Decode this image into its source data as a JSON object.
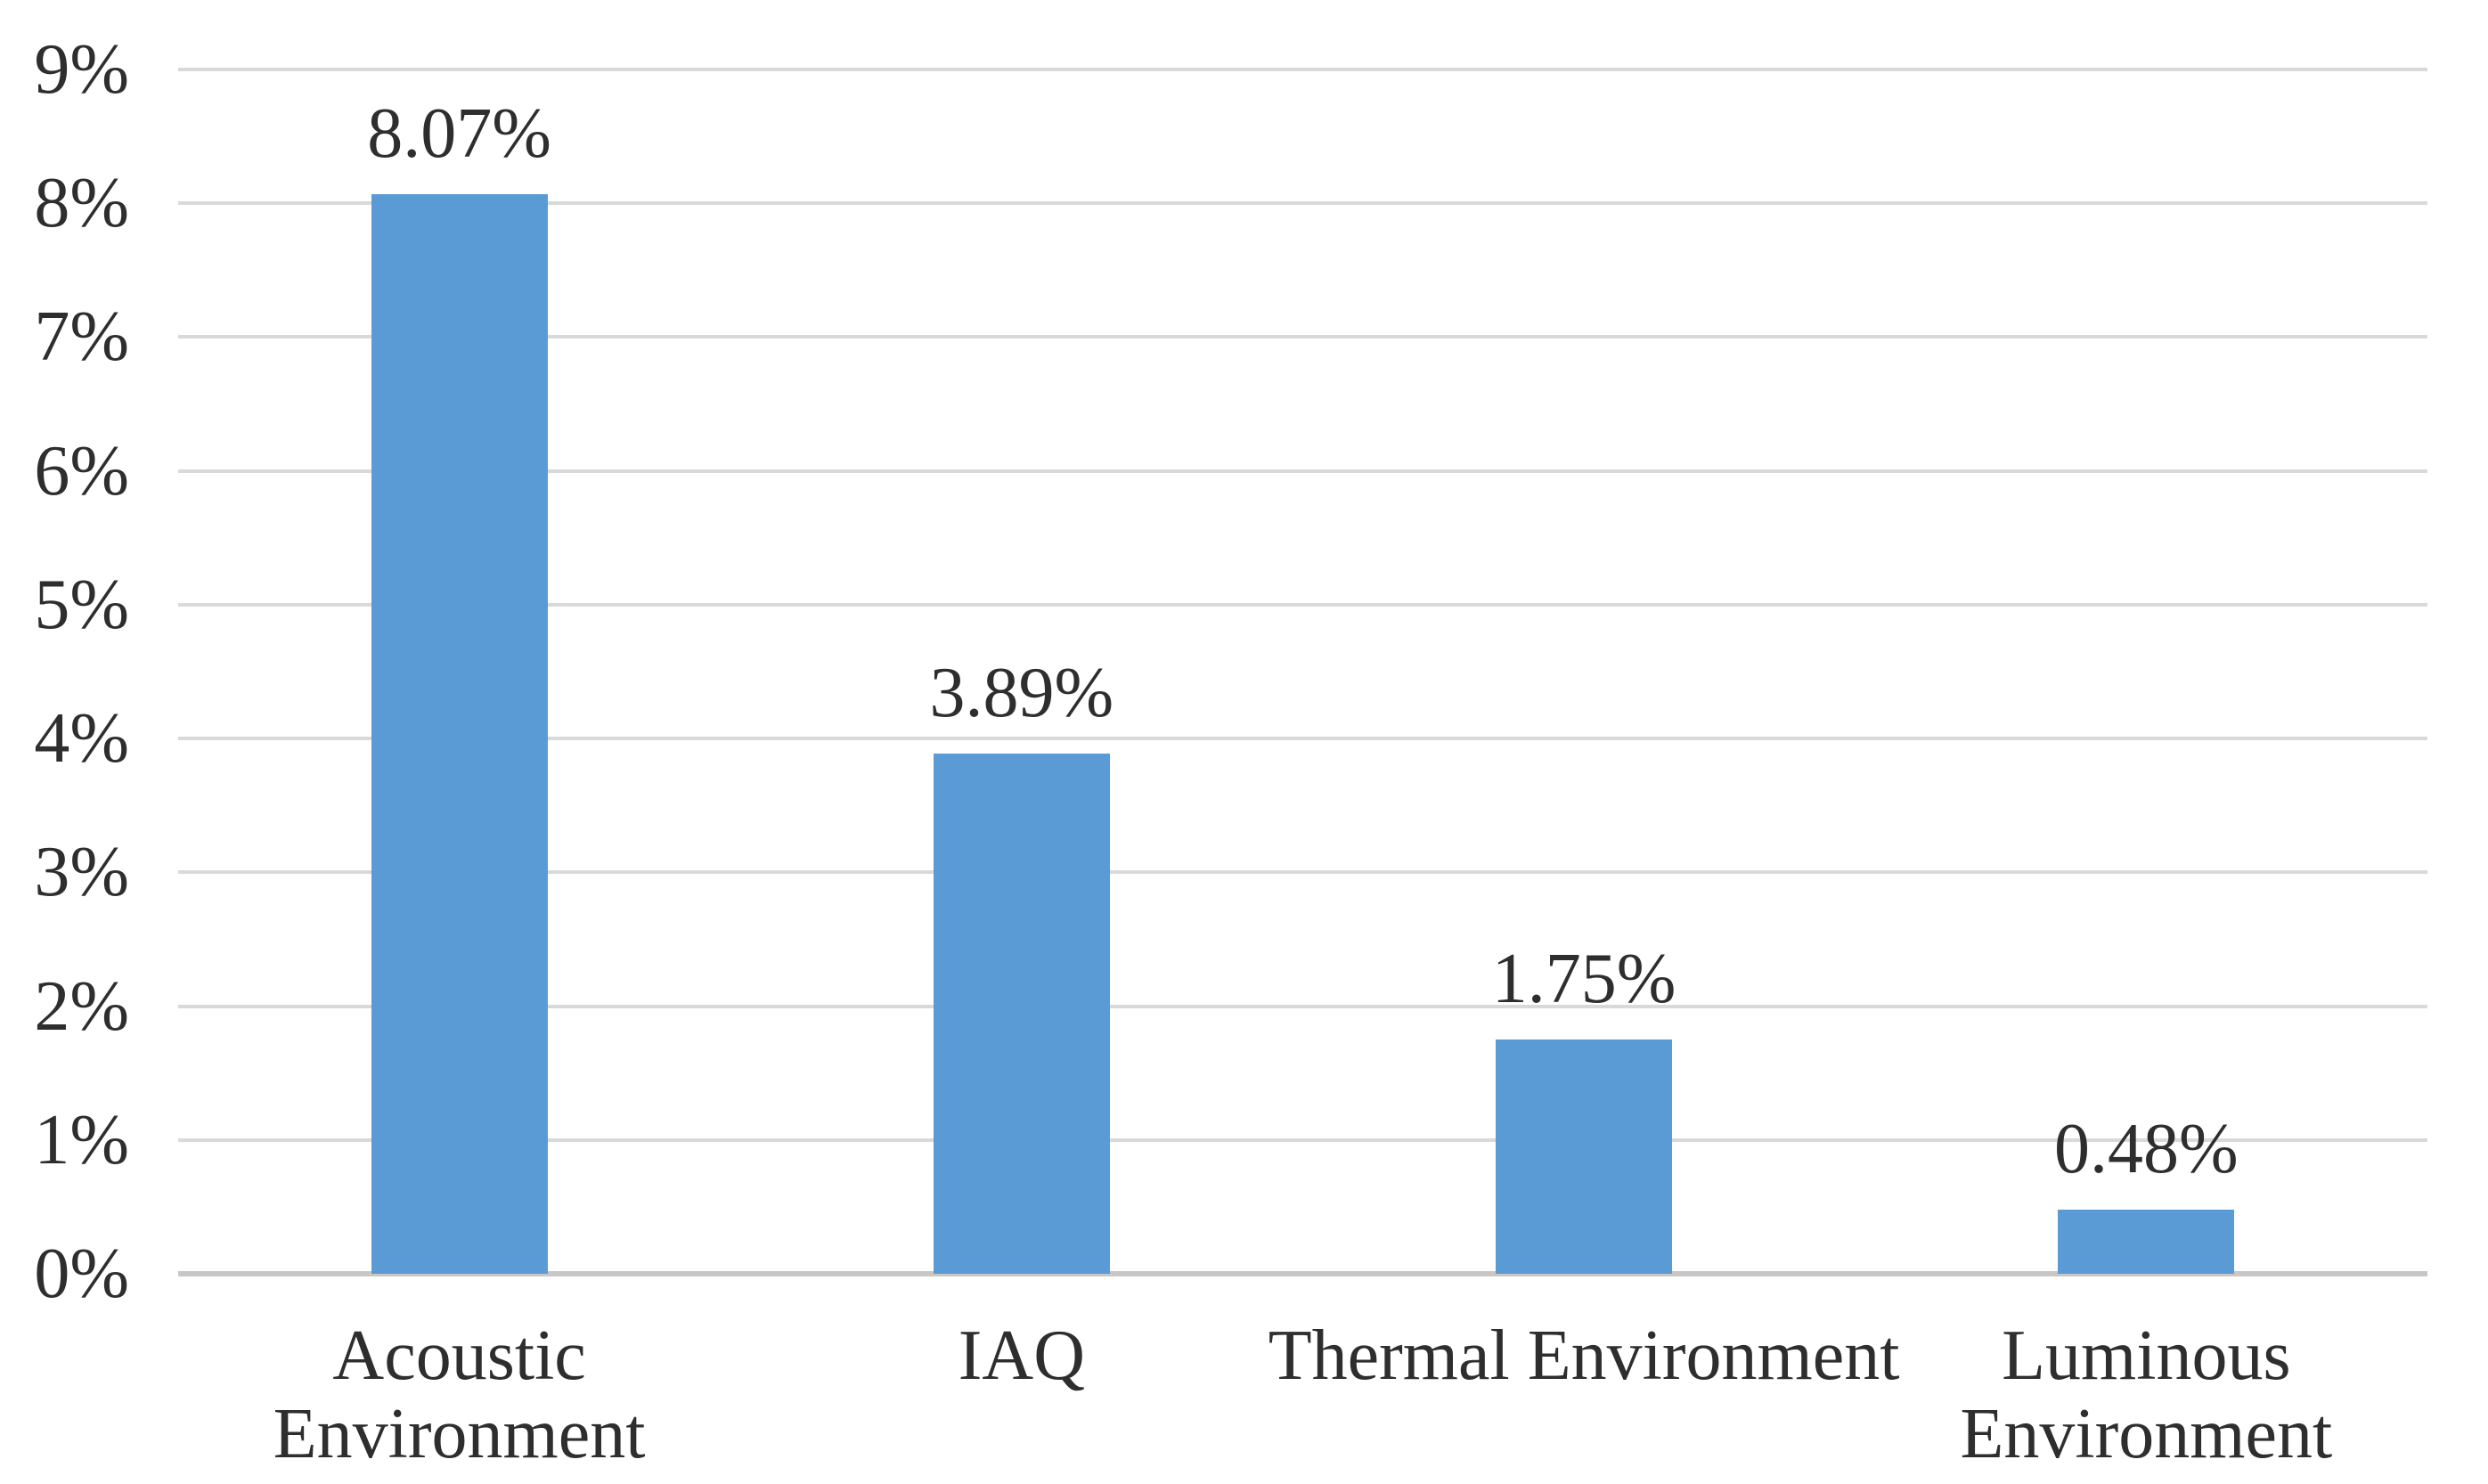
{
  "chart_data": {
    "type": "bar",
    "categories": [
      "Acoustic Environment",
      "IAQ",
      "Thermal Environment",
      "Luminous Environment"
    ],
    "category_label_lines": [
      [
        "Acoustic",
        "Environment"
      ],
      [
        "IAQ"
      ],
      [
        "Thermal Environment"
      ],
      [
        "Luminous",
        "Environment"
      ]
    ],
    "values": [
      8.07,
      3.89,
      1.75,
      0.48
    ],
    "value_labels": [
      "8.07%",
      "3.89%",
      "1.75%",
      "0.48%"
    ],
    "yticks": [
      "9%",
      "8%",
      "7%",
      "6%",
      "5%",
      "4%",
      "3%",
      "2%",
      "1%",
      "0%"
    ],
    "ytick_values": [
      9,
      8,
      7,
      6,
      5,
      4,
      3,
      2,
      1,
      0
    ],
    "ylim": [
      0,
      9
    ],
    "grid": true,
    "legend": "none",
    "title": "",
    "xlabel": "",
    "ylabel": "",
    "colors": {
      "bar": "#5B9BD5",
      "gridline": "#D9D9D9",
      "axis_line": "#C9C7C5",
      "text": "#2E2E2E",
      "background": "#FFFFFF"
    }
  }
}
